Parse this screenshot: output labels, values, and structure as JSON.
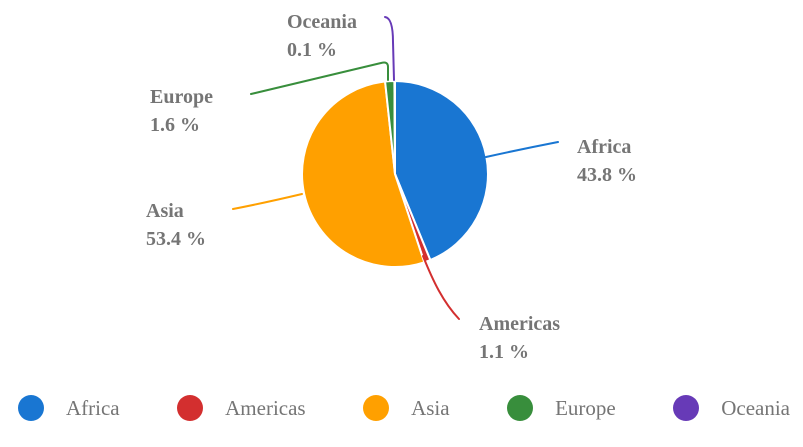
{
  "chart_data": {
    "type": "pie",
    "title": "",
    "slices": [
      {
        "label": "Africa",
        "value": 43.8,
        "pct_label": "43.8 %",
        "color": "#1976D2"
      },
      {
        "label": "Americas",
        "value": 1.1,
        "pct_label": "1.1 %",
        "color": "#D32F2F"
      },
      {
        "label": "Asia",
        "value": 53.4,
        "pct_label": "53.4 %",
        "color": "#FFA000"
      },
      {
        "label": "Europe",
        "value": 1.6,
        "pct_label": "1.6 %",
        "color": "#388E3C"
      },
      {
        "label": "Oceania",
        "value": 0.1,
        "pct_label": "0.1 %",
        "color": "#673AB7"
      }
    ],
    "legend": {
      "position": "bottom"
    },
    "start_angle": "top",
    "direction": "clockwise",
    "slice_border_color": "#FFFFFF",
    "text_color": "#757575",
    "background": "#FFFFFF"
  }
}
